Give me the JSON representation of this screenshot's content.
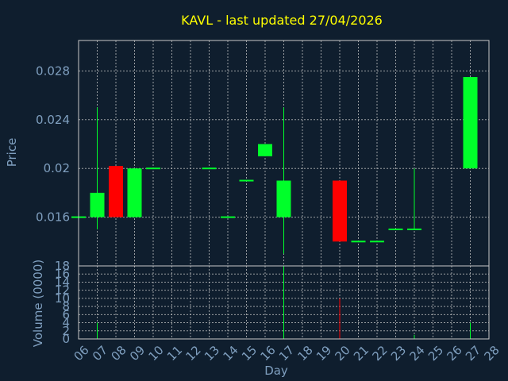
{
  "colors": {
    "background": "#0f1e2e",
    "up": "#00ff2a",
    "down": "#ff0000",
    "title": "#ffff00",
    "axis_text": "#7f9fbf",
    "grid": "#c8c8c8"
  },
  "chart_data": {
    "type": "candlestick",
    "title": "KAVL - last updated 27/04/2026",
    "ylabel": "Price",
    "xlabel": "Day",
    "volume_label": "Volume (0000)",
    "grid": true,
    "ylim": [
      0.012,
      0.0305
    ],
    "y_ticks": [
      0.016,
      0.02,
      0.024,
      0.028
    ],
    "y_tick_labels": [
      "0.016",
      "0.02",
      "0.024",
      "0.028"
    ],
    "volume_ylim": [
      0,
      18
    ],
    "volume_ticks": [
      0,
      2,
      4,
      6,
      8,
      10,
      12,
      14,
      16,
      18
    ],
    "volume_tick_labels": [
      "0",
      "2",
      "4",
      "6",
      "8",
      "10",
      "12",
      "14",
      "16",
      "18"
    ],
    "x_ticks": [
      "06",
      "07",
      "08",
      "09",
      "10",
      "11",
      "12",
      "13",
      "14",
      "15",
      "16",
      "17",
      "18",
      "19",
      "20",
      "21",
      "22",
      "23",
      "24",
      "25",
      "26",
      "27",
      "28"
    ],
    "candles": [
      {
        "day": "06",
        "open": 0.016,
        "high": 0.016,
        "low": 0.016,
        "close": 0.016,
        "volume": 0
      },
      {
        "day": "07",
        "open": 0.016,
        "high": 0.025,
        "low": 0.015,
        "close": 0.018,
        "volume": 4
      },
      {
        "day": "08",
        "open": 0.0202,
        "high": 0.0202,
        "low": 0.016,
        "close": 0.016,
        "volume": 0
      },
      {
        "day": "09",
        "open": 0.016,
        "high": 0.02,
        "low": 0.016,
        "close": 0.02,
        "volume": 0
      },
      {
        "day": "10",
        "open": 0.02,
        "high": 0.02,
        "low": 0.02,
        "close": 0.02,
        "volume": 0
      },
      {
        "day": "13",
        "open": 0.02,
        "high": 0.02,
        "low": 0.02,
        "close": 0.02,
        "volume": 0
      },
      {
        "day": "14",
        "open": 0.016,
        "high": 0.016,
        "low": 0.016,
        "close": 0.016,
        "volume": 0
      },
      {
        "day": "15",
        "open": 0.019,
        "high": 0.019,
        "low": 0.019,
        "close": 0.019,
        "volume": 0
      },
      {
        "day": "16",
        "open": 0.021,
        "high": 0.022,
        "low": 0.021,
        "close": 0.022,
        "volume": 0
      },
      {
        "day": "17",
        "open": 0.016,
        "high": 0.025,
        "low": 0.013,
        "close": 0.019,
        "volume": 18
      },
      {
        "day": "20",
        "open": 0.019,
        "high": 0.019,
        "low": 0.014,
        "close": 0.014,
        "volume": 10
      },
      {
        "day": "21",
        "open": 0.014,
        "high": 0.014,
        "low": 0.014,
        "close": 0.014,
        "volume": 0
      },
      {
        "day": "22",
        "open": 0.014,
        "high": 0.014,
        "low": 0.014,
        "close": 0.014,
        "volume": 0
      },
      {
        "day": "23",
        "open": 0.015,
        "high": 0.015,
        "low": 0.015,
        "close": 0.015,
        "volume": 0
      },
      {
        "day": "24",
        "open": 0.015,
        "high": 0.02,
        "low": 0.015,
        "close": 0.015,
        "volume": 1
      },
      {
        "day": "27",
        "open": 0.02,
        "high": 0.0275,
        "low": 0.02,
        "close": 0.0275,
        "volume": 4
      }
    ]
  }
}
